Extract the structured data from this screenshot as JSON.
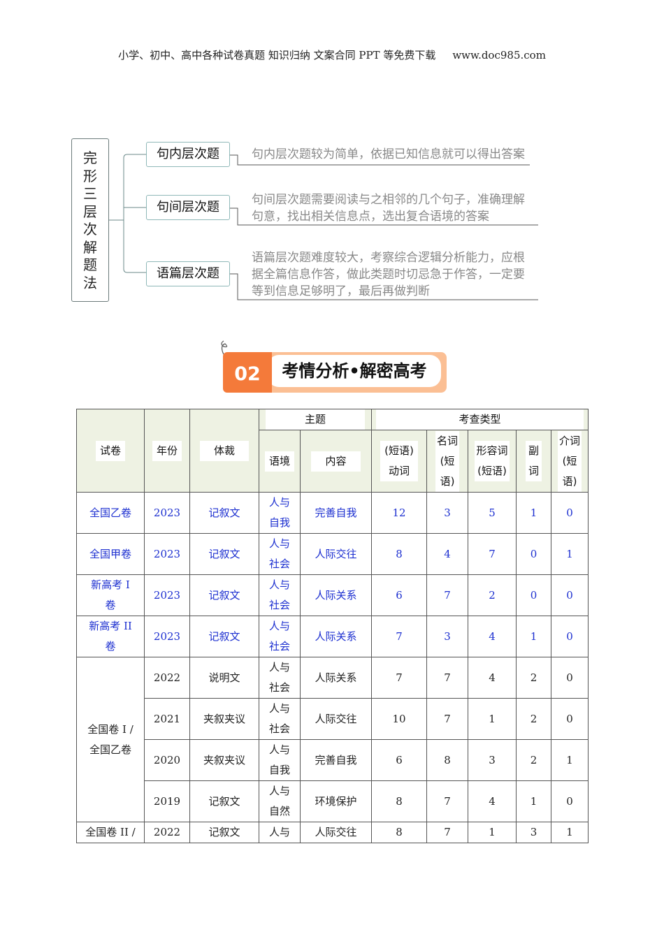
{
  "header": {
    "left": "小学、初中、高中各种试卷真题 知识归纳 文案合同 PPT 等免费下载",
    "right": "www.doc985.com"
  },
  "mindmap": {
    "root": [
      "完",
      "形",
      "三",
      "层",
      "次",
      "解",
      "题",
      "法"
    ],
    "branches": [
      {
        "label": "句内层次题",
        "desc": [
          "句内层次题较为简单，依据已知信息就可以得出答案"
        ]
      },
      {
        "label": "句间层次题",
        "desc": [
          "句间层次题需要阅读与之相邻的几个句子，准确理解",
          "句意，找出相关信息点，选出复合语境的答案"
        ]
      },
      {
        "label": "语篇层次题",
        "desc": [
          "语篇层次题难度较大，考察综合逻辑分析能力，应根",
          "据全篇信息作答，做此类题时切忌急于作答，一定要",
          "等到信息足够明了，最后再做判断"
        ]
      }
    ]
  },
  "banner": {
    "number": "02",
    "title": "考情分析•解密高考",
    "colors": {
      "accent": "#f47a3a",
      "frame": "#fbbf94"
    }
  },
  "table": {
    "headers": {
      "paper": "试卷",
      "year": "年份",
      "genre": "体裁",
      "theme": "主题",
      "types": "考查类型",
      "context": "语境",
      "content": "内容",
      "verb": [
        "(短语)",
        "动词"
      ],
      "noun": [
        "名词",
        "(短",
        "语)"
      ],
      "adj": [
        "形容词",
        "(短语)"
      ],
      "adv": [
        "副",
        "词"
      ],
      "prep": [
        "介词",
        "(短",
        "语)"
      ]
    },
    "rows": [
      {
        "paper": [
          "全国乙卷"
        ],
        "year": "2023",
        "genre": "记叙文",
        "context": [
          "人与",
          "自我"
        ],
        "content": "完善自我",
        "v": "12",
        "n": "3",
        "a": "5",
        "d": "1",
        "p": "0"
      },
      {
        "paper": [
          "全国甲卷"
        ],
        "year": "2023",
        "genre": "记叙文",
        "context": [
          "人与",
          "社会"
        ],
        "content": "人际交往",
        "v": "8",
        "n": "4",
        "a": "7",
        "d": "0",
        "p": "1"
      },
      {
        "paper": [
          "新高考 I",
          "卷"
        ],
        "year": "2023",
        "genre": "记叙文",
        "context": [
          "人与",
          "社会"
        ],
        "content": "人际关系",
        "v": "6",
        "n": "7",
        "a": "2",
        "d": "0",
        "p": "0"
      },
      {
        "paper": [
          "新高考 II",
          "卷"
        ],
        "year": "2023",
        "genre": "记叙文",
        "context": [
          "人与",
          "社会"
        ],
        "content": "人际关系",
        "v": "7",
        "n": "3",
        "a": "4",
        "d": "1",
        "p": "0"
      }
    ],
    "group": {
      "paper": [
        "全国卷 I /",
        "全国乙卷"
      ],
      "rows": [
        {
          "year": "2022",
          "genre": "说明文",
          "context": [
            "人与",
            "社会"
          ],
          "content": "人际关系",
          "v": "7",
          "n": "7",
          "a": "4",
          "d": "2",
          "p": "0"
        },
        {
          "year": "2021",
          "genre": "夹叙夹议",
          "context": [
            "人与",
            "社会"
          ],
          "content": "人际交往",
          "v": "10",
          "n": "7",
          "a": "1",
          "d": "2",
          "p": "0"
        },
        {
          "year": "2020",
          "genre": "夹叙夹议",
          "context": [
            "人与",
            "自我"
          ],
          "content": "完善自我",
          "v": "6",
          "n": "8",
          "a": "3",
          "d": "2",
          "p": "1"
        },
        {
          "year": "2019",
          "genre": "记叙文",
          "context": [
            "人与",
            "自然"
          ],
          "content": "环境保护",
          "v": "8",
          "n": "7",
          "a": "4",
          "d": "1",
          "p": "0"
        }
      ]
    },
    "last": {
      "paper": "全国卷 II /",
      "year": "2022",
      "genre": "记叙文",
      "context": "人与",
      "content": "人际交往",
      "v": "8",
      "n": "7",
      "a": "1",
      "d": "3",
      "p": "1"
    }
  }
}
